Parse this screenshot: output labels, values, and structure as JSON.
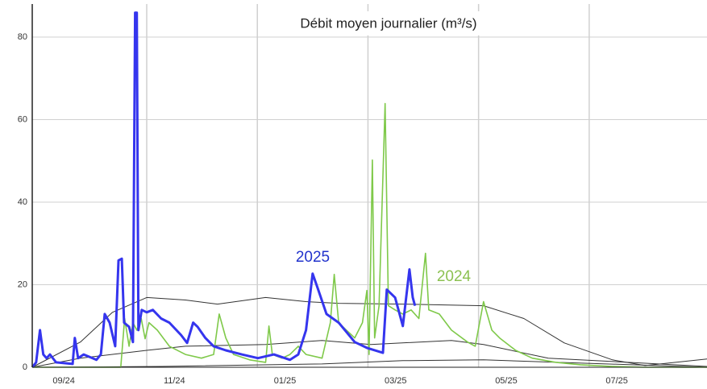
{
  "chart_data": {
    "type": "line",
    "title": "Débit moyen journalier (m³/s)",
    "annotations": [
      "2025",
      "2024"
    ],
    "xlim": [
      -0.07,
      12.13
    ],
    "xticks": [
      {
        "value": 0.5,
        "label": "09/24"
      },
      {
        "value": 2.5,
        "label": "11/24"
      },
      {
        "value": 4.5,
        "label": "01/25"
      },
      {
        "value": 6.5,
        "label": "03/25"
      },
      {
        "value": 8.5,
        "label": "05/25"
      },
      {
        "value": 10.5,
        "label": "07/25"
      }
    ],
    "xgrid": [
      2,
      4,
      6,
      8,
      10
    ],
    "ylim": [
      0,
      88
    ],
    "yticks": [
      0,
      20,
      40,
      60,
      80
    ],
    "grid": true,
    "series": [
      {
        "color": "#333333",
        "x": [
          -0.07,
          0.8,
          1.38,
          2.0,
          2.7,
          3.28,
          4.15,
          4.88,
          5.47,
          6.63,
          8.09,
          8.82,
          9.55,
          10.42,
          11.01,
          12.13
        ],
        "values": [
          0,
          6.1,
          13.3,
          16.9,
          16.3,
          15.3,
          16.9,
          15.9,
          15.5,
          15.3,
          14.9,
          11.8,
          5.9,
          1.8,
          0.4,
          2.0
        ]
      },
      {
        "color": "#333333",
        "x": [
          -0.07,
          0.8,
          2.0,
          2.7,
          4.15,
          5.17,
          6.05,
          7.51,
          8.09,
          9.26,
          12.13
        ],
        "values": [
          0,
          2.2,
          4.1,
          5.1,
          5.5,
          6.5,
          5.5,
          6.5,
          5.5,
          2.2,
          0.2
        ]
      },
      {
        "color": "#333333",
        "x": [
          -0.07,
          2.26,
          5.17,
          6.63,
          8.09,
          12.13
        ],
        "values": [
          0,
          0.2,
          0.8,
          1.6,
          1.8,
          0
        ]
      },
      {
        "color": "#7fc94a",
        "x": [
          -0.07,
          1.53,
          1.6,
          1.68,
          1.75,
          1.82,
          1.9,
          1.97,
          2.04,
          2.19,
          2.41,
          2.7,
          2.99,
          3.21,
          3.31,
          3.43,
          3.57,
          3.86,
          4.15,
          4.21,
          4.27,
          4.45,
          4.59,
          4.74,
          4.88,
          5.17,
          5.32,
          5.39,
          5.47,
          5.61,
          5.76,
          5.9,
          5.98,
          6.02,
          6.08,
          6.12,
          6.2,
          6.31,
          6.37,
          6.49,
          6.63,
          6.78,
          6.92,
          7.04,
          7.1,
          7.29,
          7.51,
          7.8,
          7.94,
          8.09,
          8.24,
          8.38,
          8.67,
          8.97,
          9.4,
          9.84,
          10.42,
          11.01,
          12.13
        ],
        "values": [
          0,
          0,
          11.8,
          5.1,
          10.8,
          9.0,
          11.8,
          6.9,
          10.8,
          9.0,
          5.1,
          3.1,
          2.2,
          3.1,
          12.9,
          7.1,
          3.1,
          1.8,
          1.2,
          10.0,
          3.1,
          2.2,
          3.1,
          5.1,
          3.1,
          2.2,
          10.8,
          22.5,
          10.8,
          9.0,
          7.1,
          10.8,
          18.6,
          3.1,
          50.2,
          7.1,
          14.9,
          63.9,
          14.9,
          13.9,
          12.9,
          13.9,
          11.8,
          27.6,
          13.9,
          12.9,
          9.0,
          6.1,
          5.1,
          15.9,
          9.0,
          7.1,
          4.1,
          2.2,
          1.2,
          0.6,
          0.2,
          0,
          0
        ]
      },
      {
        "color": "#3535ee",
        "x": [
          -0.07,
          0,
          0.07,
          0.13,
          0.19,
          0.25,
          0.36,
          0.66,
          0.7,
          0.76,
          0.86,
          1.09,
          1.17,
          1.24,
          1.33,
          1.43,
          1.49,
          1.55,
          1.59,
          1.68,
          1.75,
          1.79,
          1.82,
          1.85,
          1.91,
          2.0,
          2.11,
          2.26,
          2.41,
          2.62,
          2.73,
          2.84,
          2.92,
          3.06,
          3.21,
          3.43,
          3.72,
          4.01,
          4.3,
          4.59,
          4.74,
          4.88,
          5.0,
          5.1,
          5.25,
          5.47,
          5.76,
          5.98,
          6.27,
          6.34,
          6.49,
          6.63,
          6.75,
          6.81,
          6.85
        ],
        "values": [
          0,
          1.2,
          9.0,
          3.1,
          2.2,
          3.1,
          1.2,
          0.8,
          7.1,
          2.2,
          3.1,
          1.8,
          3.1,
          12.9,
          10.8,
          5.1,
          25.9,
          26.3,
          10.8,
          9.8,
          6.1,
          85.9,
          85.9,
          9.0,
          13.9,
          13.3,
          13.9,
          11.8,
          10.8,
          7.8,
          5.9,
          10.8,
          9.8,
          7.1,
          5.1,
          4.1,
          3.1,
          2.2,
          3.1,
          1.8,
          3.1,
          9.0,
          22.7,
          18.8,
          12.9,
          10.8,
          6.1,
          4.7,
          3.5,
          18.8,
          16.9,
          10.0,
          23.7,
          16.9,
          14.9
        ]
      }
    ]
  }
}
